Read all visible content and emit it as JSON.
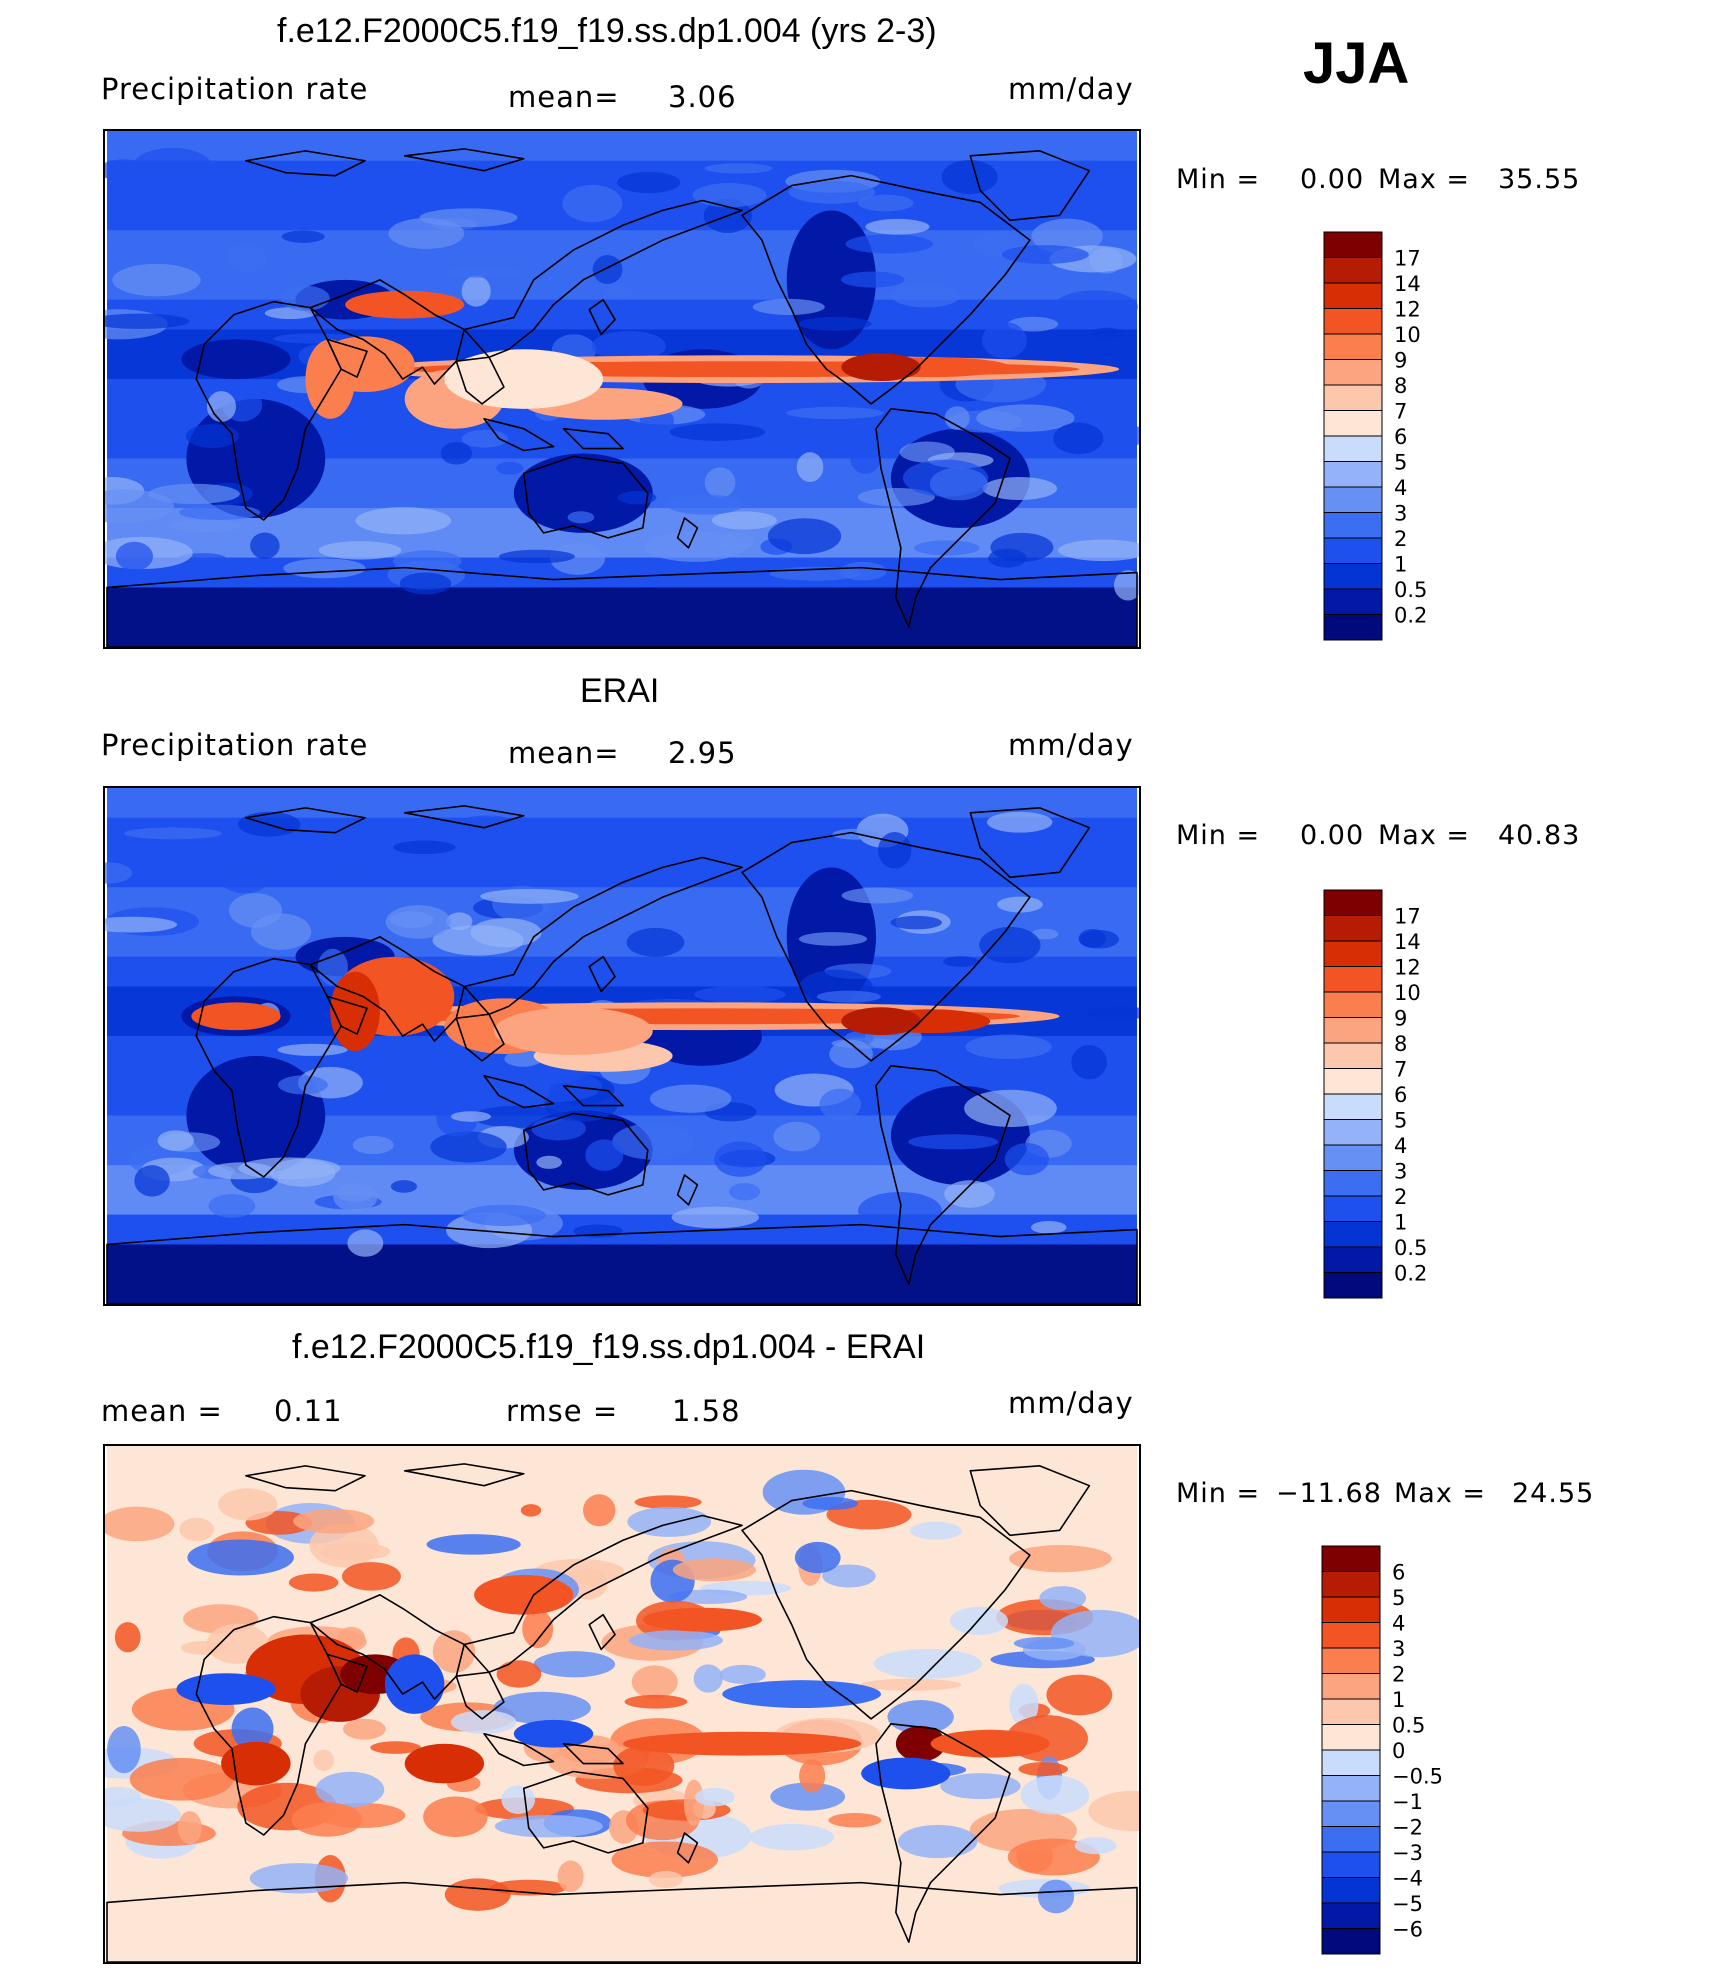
{
  "season": "JJA",
  "panels": [
    {
      "id": "model",
      "title": "f.e12.F2000C5.f19_f19.ss.dp1.004 (yrs 2-3)",
      "left_label": "Precipitation  rate",
      "center_label": "mean=",
      "center_value": "3.06",
      "units": "mm/day",
      "min_label": "Min  =",
      "min_value": "0.00",
      "max_label": "Max  =",
      "max_value": "35.55",
      "colorbar_labels": [
        "17",
        "14",
        "12",
        "10",
        "9",
        "8",
        "7",
        "6",
        "5",
        "4",
        "3",
        "2",
        "1",
        "0.5",
        "0.2"
      ]
    },
    {
      "id": "obs",
      "title": "ERAI",
      "left_label": "Precipitation  rate",
      "center_label": "mean=",
      "center_value": "2.95",
      "units": "mm/day",
      "min_label": "Min  =",
      "min_value": "0.00",
      "max_label": "Max  =",
      "max_value": "40.83",
      "colorbar_labels": [
        "17",
        "14",
        "12",
        "10",
        "9",
        "8",
        "7",
        "6",
        "5",
        "4",
        "3",
        "2",
        "1",
        "0.5",
        "0.2"
      ]
    },
    {
      "id": "diff",
      "title": "f.e12.F2000C5.f19_f19.ss.dp1.004 - ERAI",
      "left_label": "mean  =",
      "left_value": "0.11",
      "center_label": "rmse  =",
      "center_value": "1.58",
      "units": "mm/day",
      "min_label": "Min  =",
      "min_value": "−11.68",
      "max_label": "Max  =",
      "max_value": "24.55",
      "colorbar_labels": [
        "6",
        "5",
        "4",
        "3",
        "2",
        "1",
        "0.5",
        "0",
        "−0.5",
        "−1",
        "−2",
        "−3",
        "−4",
        "−5",
        "−6"
      ]
    }
  ],
  "colors": {
    "precip_scale": [
      "#000a7d",
      "#0219a8",
      "#0435d4",
      "#1e50ee",
      "#3c6ef2",
      "#6790f4",
      "#93b2f7",
      "#c9dcfb",
      "#fde6d6",
      "#fcc7ad",
      "#fca47f",
      "#fb7e4f",
      "#f25523",
      "#d82e05",
      "#b51c03",
      "#7f0000"
    ],
    "diff_scale": [
      "#000a7d",
      "#0219a8",
      "#0435d4",
      "#1e50ee",
      "#3c6ef2",
      "#6790f4",
      "#93b2f7",
      "#c9dcfb",
      "#fde6d6",
      "#fcc7ad",
      "#fca47f",
      "#fb7e4f",
      "#f25523",
      "#d82e05",
      "#b51c03",
      "#7f0000"
    ],
    "coastline": "#000000"
  }
}
